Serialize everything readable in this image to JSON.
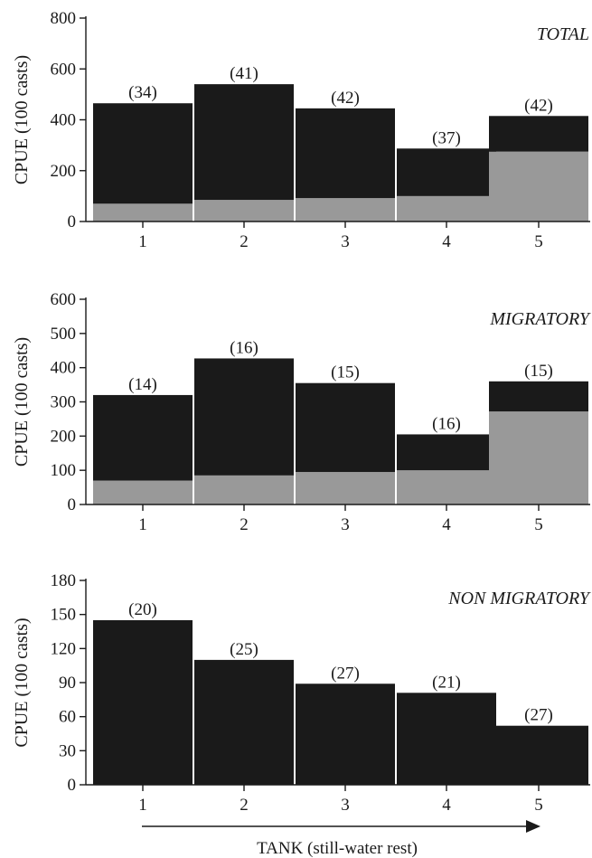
{
  "chart_data": [
    {
      "type": "bar",
      "stacked": true,
      "title": "TOTAL",
      "ylabel": "CPUE (100 casts)",
      "categories": [
        "1",
        "2",
        "3",
        "4",
        "5"
      ],
      "ylim": [
        0,
        800
      ],
      "yticks": [
        0,
        200,
        400,
        600,
        800
      ],
      "series": [
        {
          "values": [
            70,
            85,
            92,
            100,
            275
          ],
          "color": "#999999"
        },
        {
          "values": [
            395,
            455,
            353,
            187,
            140
          ],
          "color": "#1a1a1a"
        }
      ],
      "totals": [
        465,
        540,
        445,
        287,
        415
      ],
      "data_labels": [
        "(34)",
        "(41)",
        "(42)",
        "(37)",
        "(42)"
      ]
    },
    {
      "type": "bar",
      "stacked": true,
      "title": "MIGRATORY",
      "ylabel": "CPUE (100 casts)",
      "categories": [
        "1",
        "2",
        "3",
        "4",
        "5"
      ],
      "ylim": [
        0,
        600
      ],
      "yticks": [
        0,
        100,
        200,
        300,
        400,
        500,
        600
      ],
      "series": [
        {
          "values": [
            70,
            85,
            95,
            100,
            272
          ],
          "color": "#999999"
        },
        {
          "values": [
            250,
            342,
            260,
            105,
            88
          ],
          "color": "#1a1a1a"
        }
      ],
      "totals": [
        320,
        427,
        355,
        205,
        360
      ],
      "data_labels": [
        "(14)",
        "(16)",
        "(15)",
        "(16)",
        "(15)"
      ]
    },
    {
      "type": "bar",
      "stacked": false,
      "title": "NON MIGRATORY",
      "ylabel": "CPUE (100 casts)",
      "categories": [
        "1",
        "2",
        "3",
        "4",
        "5"
      ],
      "ylim": [
        0,
        180
      ],
      "yticks": [
        0,
        30,
        60,
        90,
        120,
        150,
        180
      ],
      "series": [
        {
          "values": [
            145,
            110,
            89,
            81,
            52
          ],
          "color": "#1a1a1a"
        }
      ],
      "totals": [
        145,
        110,
        89,
        81,
        52
      ],
      "data_labels": [
        "(20)",
        "(25)",
        "(27)",
        "(21)",
        "(27)"
      ]
    }
  ],
  "xlabel": "TANK (still-water rest)"
}
